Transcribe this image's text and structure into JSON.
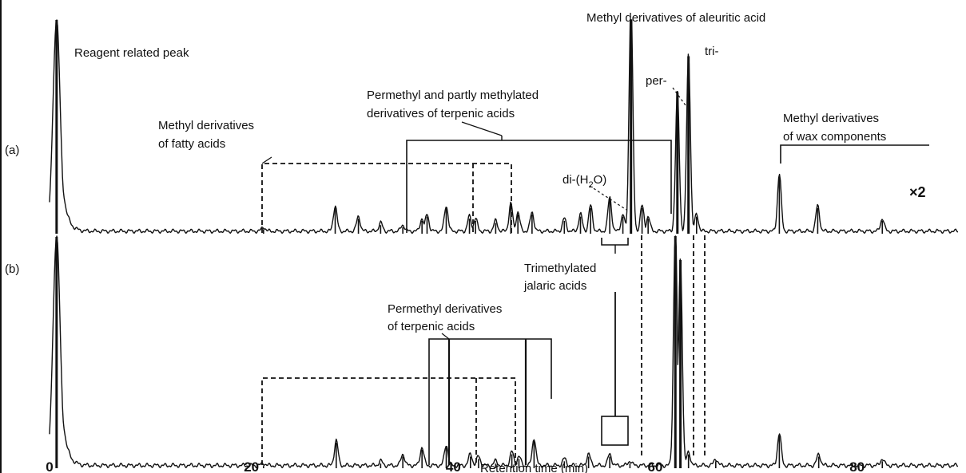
{
  "chart_data": {
    "type": "line",
    "xlabel": "Retention time (min)",
    "xlim": [
      0,
      90
    ],
    "x_ticks": [
      0,
      20,
      40,
      60,
      80
    ],
    "panels": [
      {
        "name": "(a)",
        "scale_note": "×2",
        "baseline_points": [
          [
            0.7,
            1.0
          ],
          [
            1.2,
            0.5
          ],
          [
            2,
            0.1
          ],
          [
            10,
            0.05
          ],
          [
            30,
            0.05
          ],
          [
            50,
            0.06
          ],
          [
            70,
            0.05
          ],
          [
            84,
            0.07
          ],
          [
            87,
            0.05
          ],
          [
            90,
            0.06
          ]
        ],
        "peaks": [
          {
            "x": 0.7,
            "h": 1.0
          },
          {
            "x": 21.2,
            "h": 0.02
          },
          {
            "x": 28.3,
            "h": 0.12
          },
          {
            "x": 30.6,
            "h": 0.07
          },
          {
            "x": 32.8,
            "h": 0.04
          },
          {
            "x": 35.0,
            "h": 0.03
          },
          {
            "x": 36.9,
            "h": 0.06
          },
          {
            "x": 37.4,
            "h": 0.08
          },
          {
            "x": 39.3,
            "h": 0.12
          },
          {
            "x": 41.6,
            "h": 0.07
          },
          {
            "x": 42.2,
            "h": 0.06
          },
          {
            "x": 44.2,
            "h": 0.05
          },
          {
            "x": 45.7,
            "h": 0.13
          },
          {
            "x": 46.4,
            "h": 0.09
          },
          {
            "x": 47.8,
            "h": 0.09
          },
          {
            "x": 51.0,
            "h": 0.06
          },
          {
            "x": 52.6,
            "h": 0.08
          },
          {
            "x": 53.6,
            "h": 0.12
          },
          {
            "x": 55.5,
            "h": 0.16
          },
          {
            "x": 56.8,
            "h": 0.08
          },
          {
            "x": 57.6,
            "h": 1.1
          },
          {
            "x": 58.7,
            "h": 0.12
          },
          {
            "x": 59.3,
            "h": 0.07
          },
          {
            "x": 62.2,
            "h": 0.66
          },
          {
            "x": 63.3,
            "h": 0.83
          },
          {
            "x": 64.1,
            "h": 0.08
          },
          {
            "x": 72.3,
            "h": 0.27
          },
          {
            "x": 76.1,
            "h": 0.12
          },
          {
            "x": 82.5,
            "h": 0.06
          }
        ]
      },
      {
        "name": "(b)",
        "peaks": [
          {
            "x": 0.7,
            "h": 1.0
          },
          {
            "x": 21.2,
            "h": 0.01
          },
          {
            "x": 28.4,
            "h": 0.11
          },
          {
            "x": 32.8,
            "h": 0.02
          },
          {
            "x": 35.0,
            "h": 0.05
          },
          {
            "x": 36.9,
            "h": 0.08
          },
          {
            "x": 39.3,
            "h": 0.09
          },
          {
            "x": 41.7,
            "h": 0.05
          },
          {
            "x": 42.5,
            "h": 0.04
          },
          {
            "x": 44.2,
            "h": 0.02
          },
          {
            "x": 45.8,
            "h": 0.06
          },
          {
            "x": 46.5,
            "h": 0.04
          },
          {
            "x": 48.0,
            "h": 0.12
          },
          {
            "x": 51.0,
            "h": 0.03
          },
          {
            "x": 53.4,
            "h": 0.05
          },
          {
            "x": 55.5,
            "h": 0.05
          },
          {
            "x": 57.5,
            "h": 0.02
          },
          {
            "x": 62.0,
            "h": 1.04
          },
          {
            "x": 62.5,
            "h": 0.9
          },
          {
            "x": 63.3,
            "h": 0.06
          },
          {
            "x": 66.0,
            "h": 0.03
          },
          {
            "x": 72.3,
            "h": 0.14
          },
          {
            "x": 76.2,
            "h": 0.05
          },
          {
            "x": 82.5,
            "h": 0.03
          }
        ]
      }
    ],
    "annotations": [
      "Reagent related peak",
      "Methyl derivatives of aleuritic acid",
      "per-",
      "tri-",
      "Permethyl and partly methylated derivatives of terpenic acids",
      "Methyl derivatives of fatty acids",
      "Methyl derivatives of wax components",
      "di-(H2O)",
      "Trimethylated jalaric acids",
      "Permethyl derivatives of terpenic acids"
    ]
  },
  "labels": {
    "panel_a": "(a)",
    "panel_b": "(b)",
    "scale_note": "×2",
    "reagent": "Reagent related peak",
    "aleuritic": "Methyl derivatives of aleuritic acid",
    "per": "per-",
    "tri": "tri-",
    "terpenic_a_1": "Permethyl and partly methylated",
    "terpenic_a_2": "derivatives of terpenic acids",
    "fatty_1": "Methyl derivatives",
    "fatty_2": "of fatty acids",
    "wax_1": "Methyl derivatives",
    "wax_2": "of wax components",
    "di_prefix": "di-(H",
    "di_sub": "2",
    "di_suffix": "O)",
    "jalaric_1": "Trimethylated",
    "jalaric_2": "jalaric acids",
    "terpenic_b_1": "Permethyl derivatives",
    "terpenic_b_2": "of terpenic acids",
    "xlabel": "Retention time (min)"
  }
}
